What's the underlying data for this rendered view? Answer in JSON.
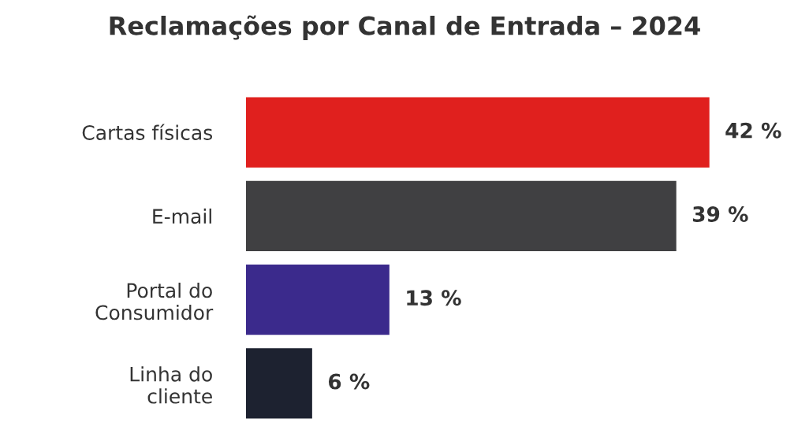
{
  "chart_data": {
    "type": "bar",
    "orientation": "horizontal",
    "title": "Reclamações por Canal de Entrada – 2024",
    "categories": [
      "Cartas físicas",
      "E-mail",
      "Portal do\nConsumidor",
      "Linha do\ncliente"
    ],
    "values": [
      42,
      39,
      13,
      6
    ],
    "colors": [
      "#e0201e",
      "#404042",
      "#3b2a8c",
      "#1d2230"
    ],
    "value_labels": [
      "42 %",
      "39 %",
      "13 %",
      "6 %"
    ],
    "tick_labels": "y"
  }
}
